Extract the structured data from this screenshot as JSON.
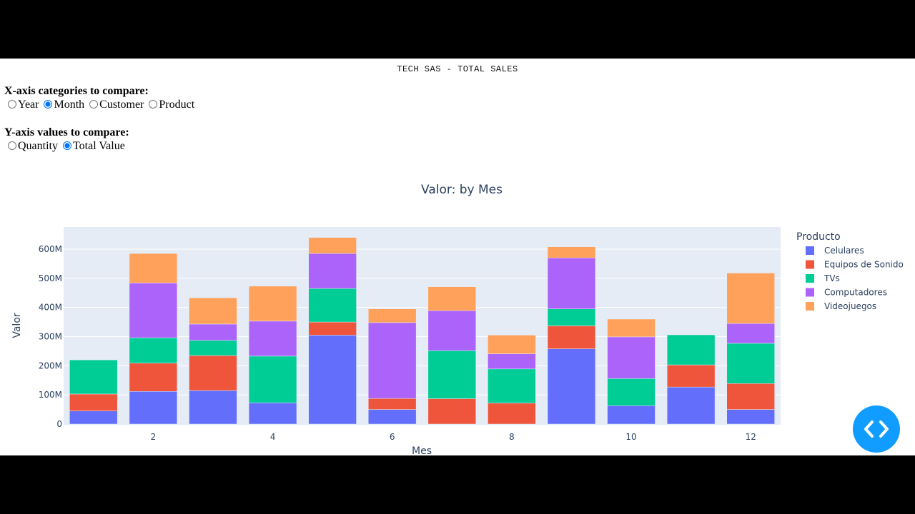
{
  "app": {
    "title": "TECH SAS - TOTAL SALES"
  },
  "controls": {
    "x_axis": {
      "label": "X-axis categories to compare:",
      "options": [
        "Year",
        "Month",
        "Customer",
        "Product"
      ],
      "selected": "Month"
    },
    "y_axis": {
      "label": "Y-axis values to compare:",
      "options": [
        "Quantity",
        "Total Value"
      ],
      "selected": "Total Value"
    }
  },
  "chart_data": {
    "type": "bar",
    "barmode": "stack",
    "title": "Valor: by Mes",
    "xlabel": "Mes",
    "ylabel": "Valor",
    "ylim": [
      0,
      670000000
    ],
    "yticks": [
      0,
      100000000,
      200000000,
      300000000,
      400000000,
      500000000,
      600000000
    ],
    "ytick_labels": [
      "0",
      "100M",
      "200M",
      "300M",
      "400M",
      "500M",
      "600M"
    ],
    "xticks": [
      2,
      4,
      6,
      8,
      10,
      12
    ],
    "categories": [
      1,
      2,
      3,
      4,
      5,
      6,
      7,
      8,
      9,
      10,
      11,
      12
    ],
    "legend_title": "Producto",
    "legend_position": "right",
    "grid": true,
    "series": [
      {
        "name": "Celulares",
        "color": "#636efa",
        "values": [
          45000000,
          112000000,
          115000000,
          73000000,
          305000000,
          50000000,
          0,
          0,
          258000000,
          63000000,
          127000000,
          50000000
        ]
      },
      {
        "name": "Equipos de Sonido",
        "color": "#ef553b",
        "values": [
          58000000,
          97000000,
          120000000,
          0,
          45000000,
          38000000,
          87000000,
          72000000,
          79000000,
          0,
          76000000,
          89000000
        ]
      },
      {
        "name": "TVs",
        "color": "#00cc96",
        "values": [
          117000000,
          87000000,
          52000000,
          160000000,
          115000000,
          0,
          165000000,
          117000000,
          58000000,
          93000000,
          103000000,
          138000000
        ]
      },
      {
        "name": "Computadores",
        "color": "#ab63fa",
        "values": [
          0,
          188000000,
          56000000,
          120000000,
          120000000,
          260000000,
          137000000,
          52000000,
          175000000,
          143000000,
          0,
          68000000
        ]
      },
      {
        "name": "Videojuegos",
        "color": "#ffa15a",
        "values": [
          0,
          101000000,
          90000000,
          120000000,
          55000000,
          47000000,
          82000000,
          64000000,
          38000000,
          61000000,
          0,
          173000000
        ]
      }
    ]
  },
  "fab": {
    "icon": "code-brackets-icon"
  }
}
